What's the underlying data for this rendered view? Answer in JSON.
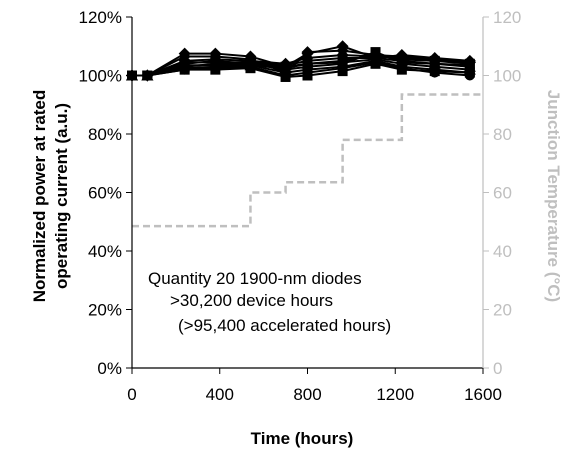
{
  "chart_data": {
    "type": "line",
    "xlabel": "Time (hours)",
    "ylabel_lines": [
      "Normalized power at rated",
      "operating current (a.u.)"
    ],
    "y2label": "Junction Temperature (°C)",
    "xlim": [
      0,
      1600
    ],
    "ylim": [
      0,
      120
    ],
    "y2lim": [
      0,
      120
    ],
    "x_ticks": [
      0,
      400,
      800,
      1200,
      1600
    ],
    "x_tick_labels": [
      "0",
      "400",
      "800",
      "1200",
      "1600"
    ],
    "y_ticks": [
      0,
      20,
      40,
      60,
      80,
      100,
      120
    ],
    "y_tick_labels": [
      "0%",
      "20%",
      "40%",
      "60%",
      "80%",
      "100%",
      "120%"
    ],
    "y2_ticks": [
      0,
      20,
      40,
      60,
      80,
      100,
      120
    ],
    "y2_tick_labels": [
      "0",
      "20",
      "40",
      "60",
      "80",
      "100",
      "120"
    ],
    "grid": false,
    "annotation_lines": [
      "Quantity 20 1900-nm diodes",
      ">30,200 device hours",
      "(>95,400 accelerated hours)"
    ],
    "colors": {
      "power": "#000000",
      "temperature": "#bfbfbf",
      "axis_right": "#bfbfbf"
    },
    "power_x": [
      0,
      70,
      240,
      380,
      540,
      700,
      800,
      960,
      1110,
      1230,
      1380,
      1540
    ],
    "power_series": [
      {
        "marker": "diamond",
        "values": [
          100,
          100,
          107.5,
          107.5,
          106.5,
          103,
          107.5,
          110,
          106,
          107,
          106,
          105
        ]
      },
      {
        "marker": "diamond",
        "values": [
          100,
          100,
          106.5,
          106.5,
          105.5,
          101,
          108,
          108.5,
          107,
          106.5,
          105.5,
          104.5
        ]
      },
      {
        "marker": "square",
        "values": [
          100,
          100,
          104,
          105,
          104,
          103,
          104,
          105,
          107,
          105.5,
          105,
          104
        ]
      },
      {
        "marker": "square",
        "values": [
          100,
          100,
          103,
          104,
          104,
          102,
          103,
          104,
          108,
          104.5,
          104,
          103.5
        ]
      },
      {
        "marker": "circle",
        "values": [
          100,
          100,
          102.5,
          103,
          103.5,
          101,
          102,
          103,
          105,
          103,
          102,
          101
        ]
      },
      {
        "marker": "circle",
        "values": [
          100,
          100,
          102,
          102.5,
          103,
          100,
          101,
          102.5,
          104.5,
          102.5,
          101,
          100
        ]
      },
      {
        "marker": "triangle",
        "values": [
          100,
          100,
          104.5,
          104.5,
          104.5,
          103.5,
          105,
          106,
          106,
          105,
          104,
          103
        ]
      },
      {
        "marker": "triangle",
        "values": [
          100,
          100,
          103.5,
          103.5,
          103.5,
          102.5,
          104,
          104.5,
          105.5,
          104,
          103,
          102
        ]
      },
      {
        "marker": "diamond",
        "values": [
          100,
          100,
          105,
          105.5,
          105,
          104,
          106,
          107,
          106.5,
          106,
          105,
          104.5
        ]
      },
      {
        "marker": "square",
        "values": [
          100,
          100,
          102,
          102,
          102.5,
          99.5,
          100,
          101.5,
          104,
          102,
          101.5,
          101
        ]
      }
    ],
    "temperature_step": {
      "x": [
        0,
        540,
        540,
        700,
        700,
        960,
        960,
        1230,
        1230,
        1600
      ],
      "y": [
        48.5,
        48.5,
        60,
        60,
        63.5,
        63.5,
        78,
        78,
        93.5,
        93.5
      ]
    }
  }
}
